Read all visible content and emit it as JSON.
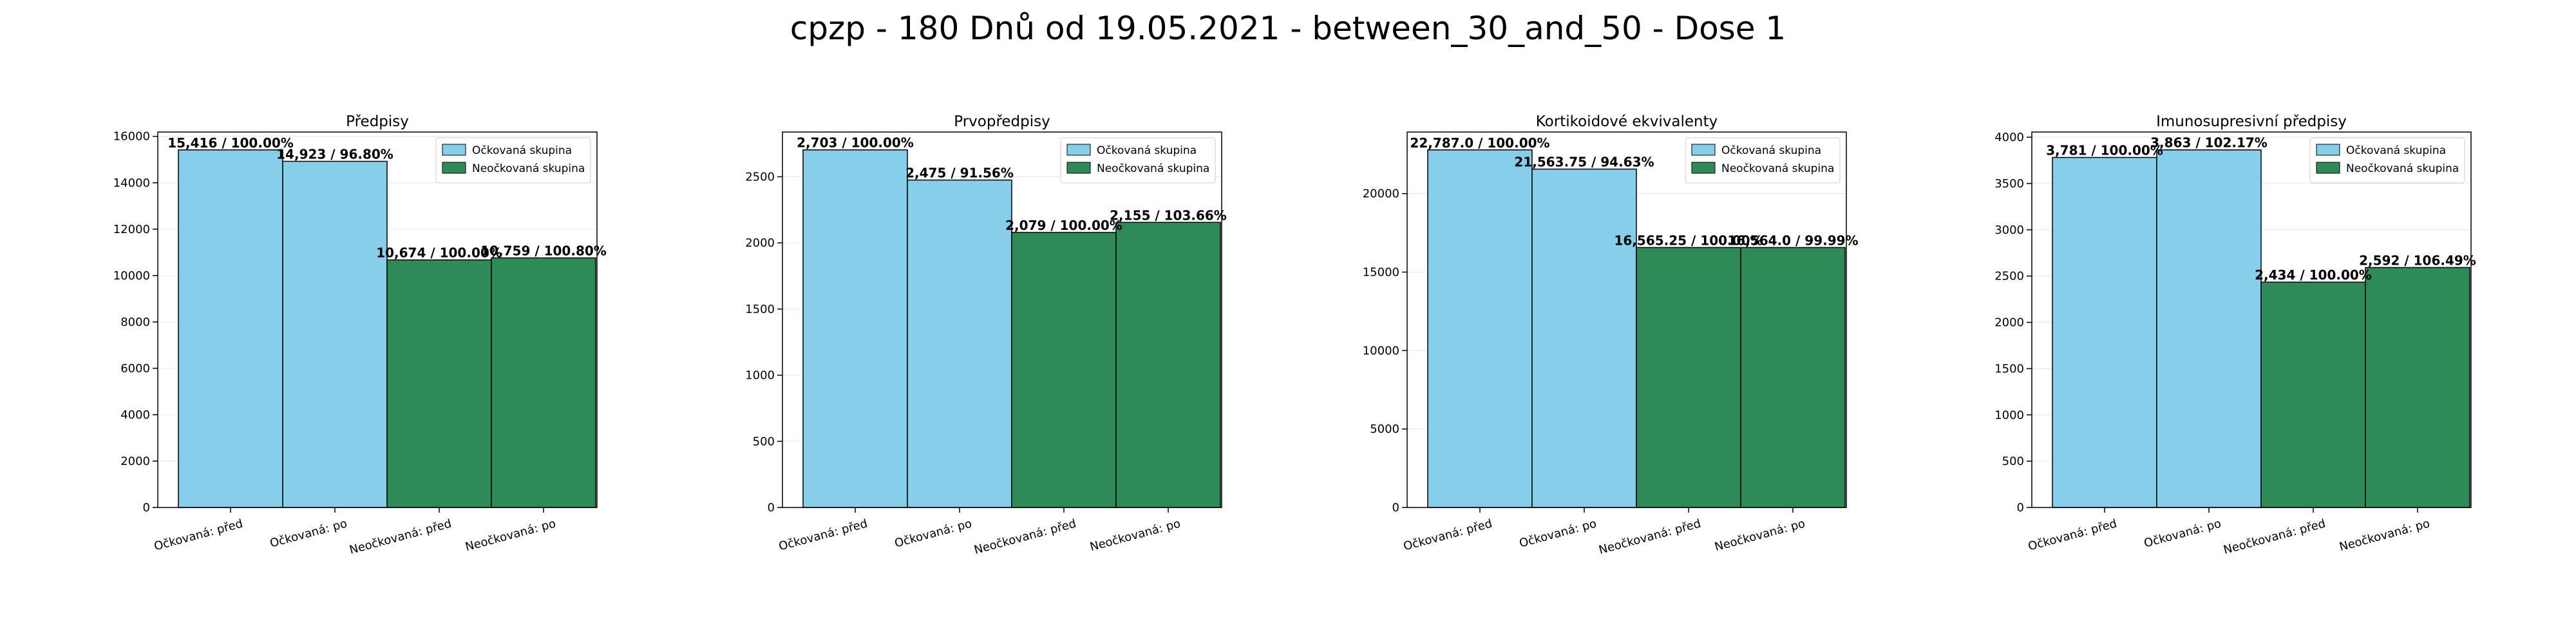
{
  "suptitle": "cpzp - 180 Dnů od 19.05.2021 - between_30_and_50 - Dose 1",
  "colors": {
    "vaccinated": "#87ceeb",
    "unvaccinated": "#2e8b57",
    "edge": "#000000",
    "grid": "#e6e6e6"
  },
  "chart_data": [
    {
      "type": "bar",
      "title": "Předpisy",
      "categories": [
        "Očkovaná: před",
        "Očkovaná: po",
        "Neočkovaná: před",
        "Neočkovaná: po"
      ],
      "values": [
        15416,
        14923,
        10674,
        10759
      ],
      "bar_labels": [
        "15,416 / 100.00%",
        "14,923 / 96.80%",
        "10,674 / 100.00%",
        "10,759 / 100.80%"
      ],
      "legend": [
        "Očkovaná skupina",
        "Neočkovaná skupina"
      ],
      "legend_position": "top-right",
      "ylim": [
        0,
        16187
      ],
      "yticks": [
        0,
        2000,
        4000,
        6000,
        8000,
        10000,
        12000,
        14000,
        16000
      ],
      "grid": true
    },
    {
      "type": "bar",
      "title": "Prvopředpisy",
      "categories": [
        "Očkovaná: před",
        "Očkovaná: po",
        "Neočkovaná: před",
        "Neočkovaná: po"
      ],
      "values": [
        2703,
        2475,
        2079,
        2155
      ],
      "bar_labels": [
        "2,703 / 100.00%",
        "2,475 / 91.56%",
        "2,079 / 100.00%",
        "2,155 / 103.66%"
      ],
      "legend": [
        "Očkovaná skupina",
        "Neočkovaná skupina"
      ],
      "legend_position": "top-right",
      "ylim": [
        0,
        2838
      ],
      "yticks": [
        0,
        500,
        1000,
        1500,
        2000,
        2500
      ],
      "grid": true
    },
    {
      "type": "bar",
      "title": "Kortikoidové ekvivalenty",
      "categories": [
        "Očkovaná: před",
        "Očkovaná: po",
        "Neočkovaná: před",
        "Neočkovaná: po"
      ],
      "values": [
        22787.0,
        21563.75,
        16565.25,
        16564.0
      ],
      "bar_labels": [
        "22,787.0 / 100.00%",
        "21,563.75 / 94.63%",
        "16,565.25 / 100.00%",
        "16,564.0 / 99.99%"
      ],
      "legend": [
        "Očkovaná skupina",
        "Neočkovaná skupina"
      ],
      "legend_position": "top-right",
      "ylim": [
        0,
        23926
      ],
      "yticks": [
        0,
        5000,
        10000,
        15000,
        20000
      ],
      "grid": true
    },
    {
      "type": "bar",
      "title": "Imunosupresivní předpisy",
      "categories": [
        "Očkovaná: před",
        "Očkovaná: po",
        "Neočkovaná: před",
        "Neočkovaná: po"
      ],
      "values": [
        3781,
        3863,
        2434,
        2592
      ],
      "bar_labels": [
        "3,781 / 100.00%",
        "3,863 / 102.17%",
        "2,434 / 100.00%",
        "2,592 / 106.49%"
      ],
      "legend": [
        "Očkovaná skupina",
        "Neočkovaná skupina"
      ],
      "legend_position": "top-right",
      "ylim": [
        0,
        4056
      ],
      "yticks": [
        0,
        500,
        1000,
        1500,
        2000,
        2500,
        3000,
        3500,
        4000
      ],
      "grid": true
    }
  ]
}
